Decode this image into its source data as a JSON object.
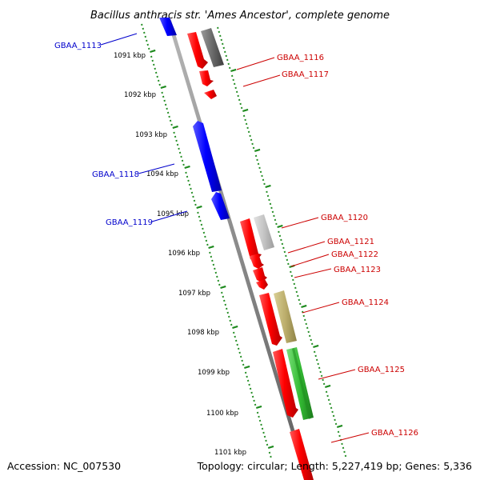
{
  "title": "Bacillus anthracis str. 'Ames Ancestor', complete genome",
  "footer": {
    "accession": "Accession: NC_007530",
    "topology": "Topology: circular; Length: 5,227,419 bp; Genes: 5,336"
  },
  "colors": {
    "backbone": "#8a8a8a",
    "tick": "#1e8a1e",
    "forward_gene": "#ee0000",
    "reverse_gene": "#0000ee",
    "forward_label": "#cc0000",
    "reverse_label": "#0000cc",
    "feature_dark_gray": "#6e6e6e",
    "feature_light_gray": "#c2c2c2",
    "feature_khaki": "#bdb070",
    "feature_green": "#33bb33"
  },
  "kbp_ticks": [
    "1091 kbp",
    "1092 kbp",
    "1093 kbp",
    "1094 kbp",
    "1095 kbp",
    "1096 kbp",
    "1097 kbp",
    "1098 kbp",
    "1099 kbp",
    "1100 kbp",
    "1101 kbp"
  ],
  "gene_labels": [
    {
      "text": "GBAA_1113",
      "strand": "reverse"
    },
    {
      "text": "GBAA_1116",
      "strand": "forward"
    },
    {
      "text": "GBAA_1117",
      "strand": "forward"
    },
    {
      "text": "GBAA_1118",
      "strand": "reverse"
    },
    {
      "text": "GBAA_1119",
      "strand": "reverse"
    },
    {
      "text": "GBAA_1120",
      "strand": "forward"
    },
    {
      "text": "GBAA_1121",
      "strand": "forward"
    },
    {
      "text": "GBAA_1122",
      "strand": "forward"
    },
    {
      "text": "GBAA_1123",
      "strand": "forward"
    },
    {
      "text": "GBAA_1124",
      "strand": "forward"
    },
    {
      "text": "GBAA_1125",
      "strand": "forward"
    },
    {
      "text": "GBAA_1126",
      "strand": "forward"
    }
  ]
}
